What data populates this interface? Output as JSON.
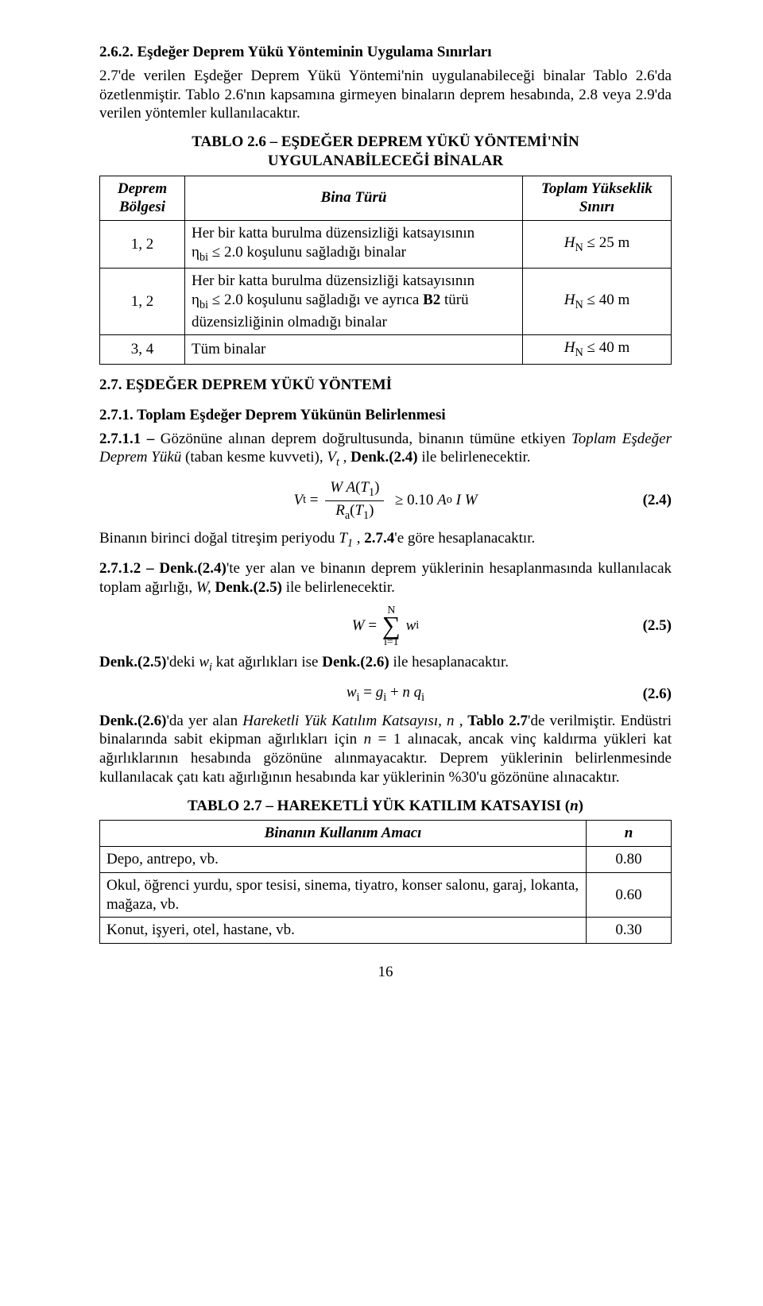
{
  "s262": {
    "heading": "2.6.2. Eşdeğer Deprem Yükü Yönteminin Uygulama Sınırları",
    "para": "2.7'de verilen Eşdeğer Deprem Yükü Yöntemi'nin uygulanabileceği binalar Tablo 2.6'da özetlenmiştir. Tablo 2.6'nın kapsamına girmeyen binaların deprem hesabında, 2.8 veya 2.9'da verilen yöntemler kullanılacaktır."
  },
  "table26": {
    "title1": "TABLO 2.6 – EŞDEĞER DEPREM YÜKÜ YÖNTEMİ'NİN",
    "title2": "UYGULANABİLECEĞİ BİNALAR",
    "head_a1": "Deprem",
    "head_a2": "Bölgesi",
    "head_b": "Bina Türü",
    "head_c1": "Toplam Yükseklik",
    "head_c2": "Sınırı",
    "r1_a": "1, 2",
    "r1_b": "Her bir katta burulma düzensizliği katsayısının ηbi ≤ 2.0 koşulunu sağladığı binalar",
    "r1_c": "HN ≤ 25 m",
    "r2_a": "1, 2",
    "r2_b": "Her bir katta burulma düzensizliği katsayısının ηbi ≤ 2.0 koşulunu sağladığı ve ayrıca B2 türü düzensizliğinin olmadığı binalar",
    "r2_c": "HN ≤ 40 m",
    "r3_a": "3, 4",
    "r3_b": "Tüm binalar",
    "r3_c": "HN ≤ 40 m"
  },
  "s27": {
    "heading": "2.7. EŞDEĞER DEPREM YÜKÜ YÖNTEMİ"
  },
  "s271": {
    "heading": "2.7.1. Toplam Eşdeğer Deprem Yükünün Belirlenmesi",
    "p1a": "2.7.1.1 – ",
    "p1b": "Gözönüne alınan deprem doğrultusunda, binanın tümüne etkiyen ",
    "p1c": "Toplam Eşdeğer Deprem Yükü",
    "p1d": " (taban kesme kuvveti), ",
    "p1e": "Vt",
    "p1f": " , ",
    "p1g": "Denk.(2.4)",
    "p1h": " ile belirlenecektir.",
    "eq24num": "(2.4)",
    "eq24_lhs": "Vt",
    "eq24_frac_num": "W A(T1)",
    "eq24_frac_den": "Ra(T1)",
    "eq24_rhs_ge": " ≥ 0.10 Ao I W",
    "p2a": "Binanın birinci doğal titreşim periyodu ",
    "p2b": "T1",
    "p2c": " , ",
    "p2d": "2.7.4",
    "p2e": "'e göre hesaplanacaktır.",
    "p3a": "2.7.1.2 – Denk.(2.4)",
    "p3b": "'te yer alan ve binanın deprem yüklerinin hesaplanmasında kullanılacak toplam ağırlığı, ",
    "p3c": "W, ",
    "p3d": "Denk.(2.5)",
    "p3e": " ile belirlenecektir.",
    "eq25num": "(2.5)",
    "eq25_lhs": "W = ",
    "eq25_top": "N",
    "eq25_bot": "i=1",
    "eq25_rhs": " wi",
    "p4a": "Denk.(2.5)",
    "p4b": "'deki ",
    "p4c": "wi",
    "p4d": " kat ağırlıkları ise ",
    "p4e": "Denk.(2.6)",
    "p4f": " ile hesaplanacaktır.",
    "eq26": "wi = gi + n qi",
    "eq26num": "(2.6)",
    "p5a": "Denk.(2.6)",
    "p5b": "'da yer alan ",
    "p5c": "Hareketli Yük Katılım Katsayısı, n ,",
    "p5d": " Tablo 2.7",
    "p5e": "'de verilmiştir. Endüstri binalarında sabit ekipman ağırlıkları için ",
    "p5f": "n",
    "p5g": " = 1 alınacak, ancak vinç kaldırma yükleri kat ağırlıklarının hesabında gözönüne alınmayacaktır. Deprem yüklerinin belirlenmesinde kullanılacak çatı katı ağırlığının hesabında kar yüklerinin %30'u gözönüne alınacaktır."
  },
  "table27": {
    "title": "TABLO 2.7 – HAREKETLİ YÜK KATILIM KATSAYISI (n)",
    "head_left": "Binanın Kullanım Amacı",
    "head_right": "n",
    "r1_left": "Depo, antrepo, vb.",
    "r1_right": "0.80",
    "r2_left": "Okul, öğrenci yurdu, spor tesisi, sinema, tiyatro, konser salonu, garaj, lokanta, mağaza, vb.",
    "r2_right": "0.60",
    "r3_left": "Konut, işyeri, otel, hastane, vb.",
    "r3_right": "0.30"
  },
  "pagenum": "16"
}
